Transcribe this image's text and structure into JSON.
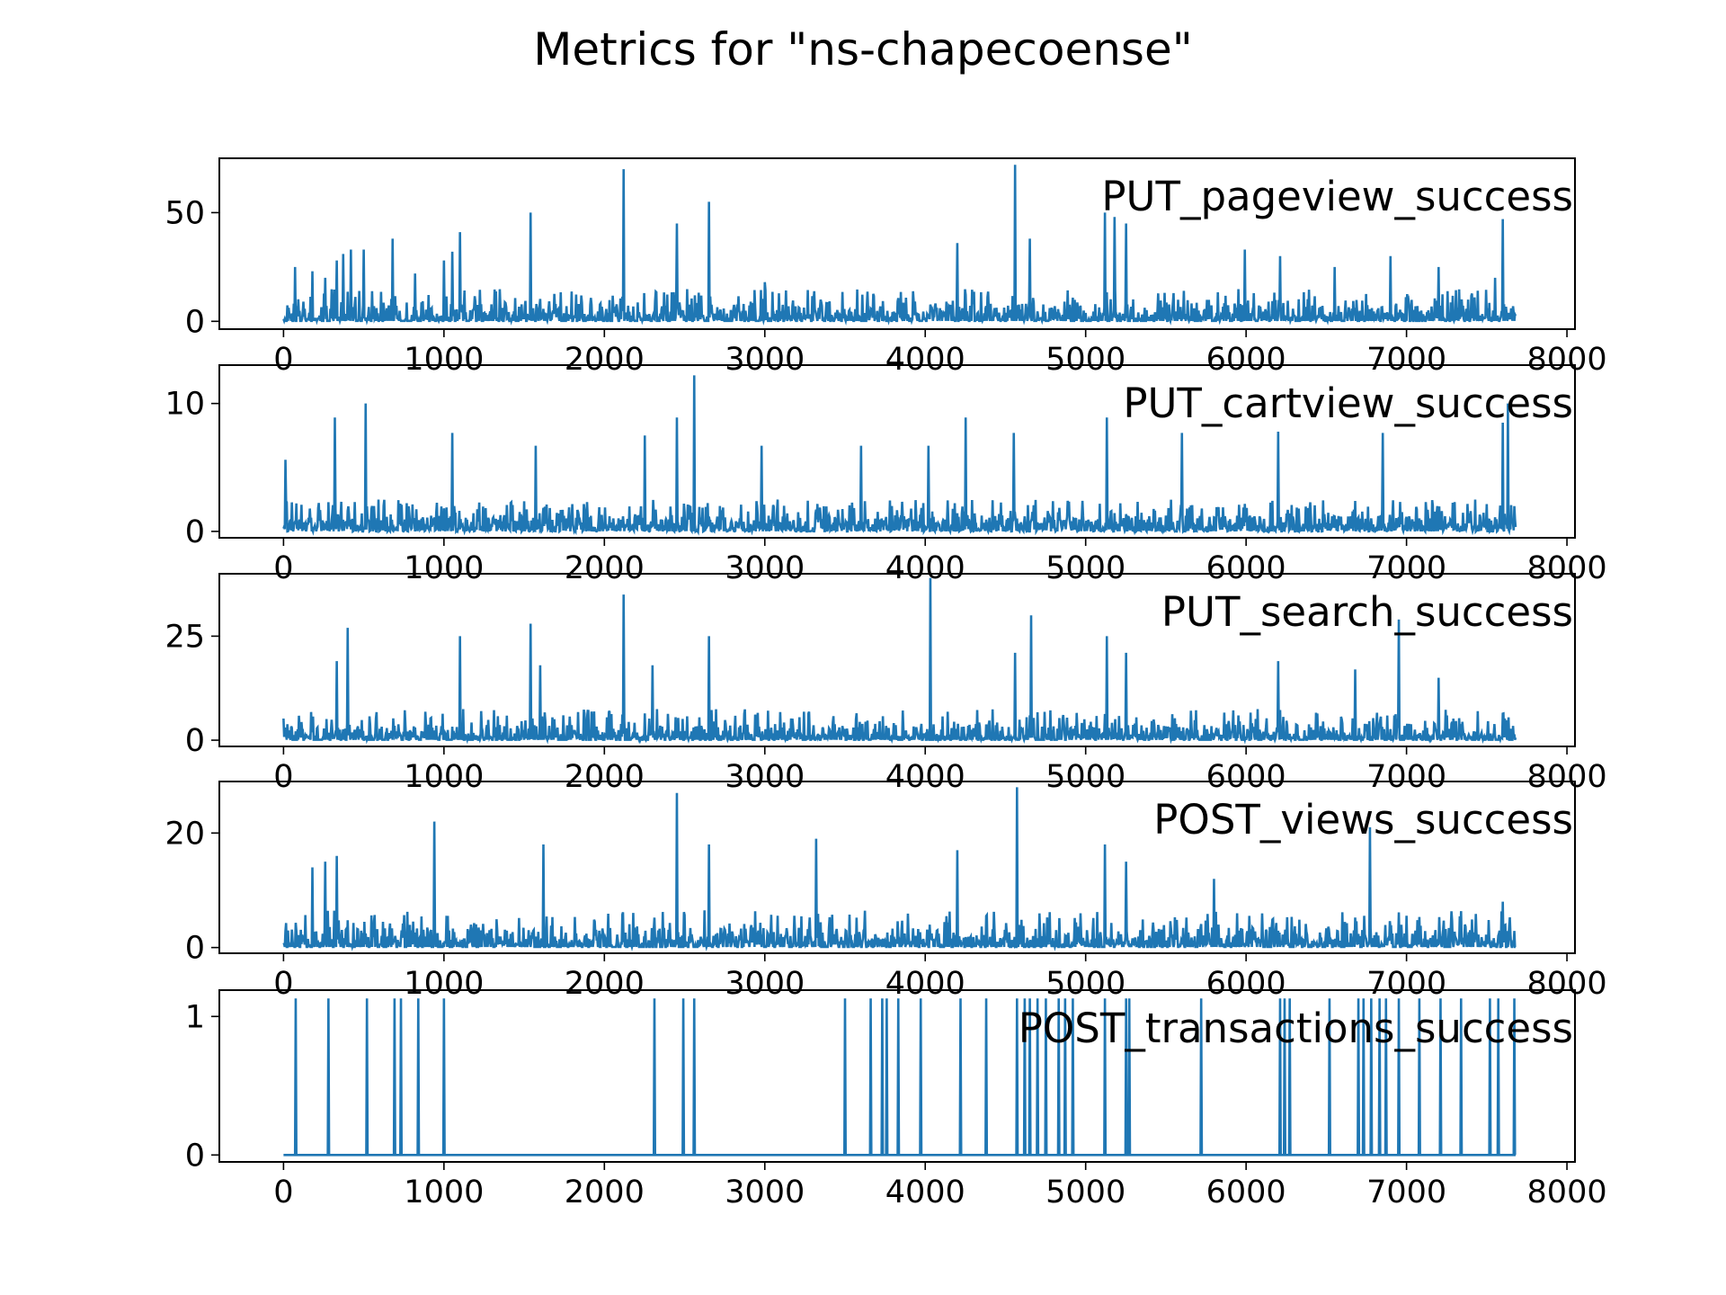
{
  "title": "Metrics for \"ns-chapecoense\"",
  "line_color": "#1f77b4",
  "chart_data": [
    {
      "type": "line",
      "series": [
        {
          "name": "PUT_pageview_success",
          "color": "#1f77b4"
        }
      ],
      "xlim": [
        -400,
        8050
      ],
      "ylim": [
        -3.6,
        75
      ],
      "xticks": [
        0,
        1000,
        2000,
        3000,
        4000,
        5000,
        6000,
        7000,
        8000
      ],
      "xtick_labels": [
        "0",
        "1000",
        "2000",
        "3000",
        "4000",
        "5000",
        "6000",
        "7000",
        "8000"
      ],
      "yticks": [
        0,
        50
      ],
      "ytick_labels": [
        "0",
        "50"
      ],
      "x_range": [
        0,
        7680
      ],
      "baseline": 1,
      "noise_max": 14,
      "spikes": [
        [
          70,
          25
        ],
        [
          180,
          23
        ],
        [
          260,
          20
        ],
        [
          330,
          28
        ],
        [
          370,
          31
        ],
        [
          420,
          33
        ],
        [
          500,
          33
        ],
        [
          680,
          38
        ],
        [
          820,
          22
        ],
        [
          1000,
          28
        ],
        [
          1050,
          32
        ],
        [
          1100,
          41
        ],
        [
          1540,
          50
        ],
        [
          2120,
          70
        ],
        [
          2450,
          45
        ],
        [
          2650,
          55
        ],
        [
          3000,
          18
        ],
        [
          4200,
          36
        ],
        [
          4560,
          72
        ],
        [
          4650,
          38
        ],
        [
          5120,
          50
        ],
        [
          5180,
          48
        ],
        [
          5250,
          45
        ],
        [
          5990,
          33
        ],
        [
          6210,
          30
        ],
        [
          6550,
          25
        ],
        [
          6900,
          30
        ],
        [
          7200,
          25
        ],
        [
          7550,
          20
        ],
        [
          7600,
          47
        ]
      ]
    },
    {
      "type": "line",
      "series": [
        {
          "name": "PUT_cartview_success",
          "color": "#1f77b4"
        }
      ],
      "xlim": [
        -400,
        8050
      ],
      "ylim": [
        -0.5,
        13
      ],
      "xticks": [
        0,
        1000,
        2000,
        3000,
        4000,
        5000,
        6000,
        7000,
        8000
      ],
      "xtick_labels": [
        "0",
        "1000",
        "2000",
        "3000",
        "4000",
        "5000",
        "6000",
        "7000",
        "8000"
      ],
      "yticks": [
        0,
        10
      ],
      "ytick_labels": [
        "0",
        "10"
      ],
      "x_range": [
        0,
        7680
      ],
      "baseline": 0,
      "noise_max": 2.5,
      "spikes": [
        [
          10,
          5.6
        ],
        [
          320,
          8.9
        ],
        [
          510,
          10
        ],
        [
          1050,
          7.7
        ],
        [
          1570,
          6.7
        ],
        [
          2250,
          7.5
        ],
        [
          2450,
          8.9
        ],
        [
          2560,
          12.2
        ],
        [
          2980,
          6.7
        ],
        [
          3600,
          6.7
        ],
        [
          4020,
          6.7
        ],
        [
          4250,
          8.9
        ],
        [
          4550,
          7.7
        ],
        [
          5130,
          8.9
        ],
        [
          5600,
          7.7
        ],
        [
          6200,
          7.8
        ],
        [
          6850,
          7.7
        ],
        [
          7600,
          8.5
        ],
        [
          7630,
          10
        ]
      ]
    },
    {
      "type": "line",
      "series": [
        {
          "name": "PUT_search_success",
          "color": "#1f77b4"
        }
      ],
      "xlim": [
        -400,
        8050
      ],
      "ylim": [
        -1.5,
        40
      ],
      "xticks": [
        0,
        1000,
        2000,
        3000,
        4000,
        5000,
        6000,
        7000,
        8000
      ],
      "xtick_labels": [
        "0",
        "1000",
        "2000",
        "3000",
        "4000",
        "5000",
        "6000",
        "7000",
        "8000"
      ],
      "yticks": [
        0,
        25
      ],
      "ytick_labels": [
        "0",
        "25"
      ],
      "x_range": [
        0,
        7680
      ],
      "baseline": 0.5,
      "noise_max": 7,
      "spikes": [
        [
          330,
          19
        ],
        [
          400,
          27
        ],
        [
          1100,
          25
        ],
        [
          1540,
          28
        ],
        [
          1600,
          18
        ],
        [
          2120,
          35
        ],
        [
          2300,
          18
        ],
        [
          2650,
          25
        ],
        [
          4030,
          39
        ],
        [
          4560,
          21
        ],
        [
          4660,
          30
        ],
        [
          5130,
          25
        ],
        [
          5250,
          21
        ],
        [
          6200,
          19
        ],
        [
          6680,
          17
        ],
        [
          6950,
          29
        ],
        [
          7200,
          15
        ]
      ]
    },
    {
      "type": "line",
      "series": [
        {
          "name": "POST_views_success",
          "color": "#1f77b4"
        }
      ],
      "xlim": [
        -400,
        8050
      ],
      "ylim": [
        -1,
        29
      ],
      "xticks": [
        0,
        1000,
        2000,
        3000,
        4000,
        5000,
        6000,
        7000,
        8000
      ],
      "xtick_labels": [
        "0",
        "1000",
        "2000",
        "3000",
        "4000",
        "5000",
        "6000",
        "7000",
        "8000"
      ],
      "yticks": [
        0,
        20
      ],
      "ytick_labels": [
        "0",
        "20"
      ],
      "x_range": [
        0,
        7680
      ],
      "baseline": 0.5,
      "noise_max": 6,
      "spikes": [
        [
          180,
          14
        ],
        [
          260,
          15
        ],
        [
          330,
          16
        ],
        [
          940,
          22
        ],
        [
          1620,
          18
        ],
        [
          2450,
          27
        ],
        [
          2650,
          18
        ],
        [
          3320,
          19
        ],
        [
          4200,
          17
        ],
        [
          4570,
          28
        ],
        [
          5120,
          18
        ],
        [
          5250,
          15
        ],
        [
          5800,
          12
        ],
        [
          6770,
          21
        ],
        [
          7600,
          8
        ]
      ]
    },
    {
      "type": "line",
      "series": [
        {
          "name": "POST_transactions_success",
          "color": "#1f77b4"
        }
      ],
      "xlim": [
        -400,
        8050
      ],
      "ylim": [
        -0.05,
        1.19
      ],
      "xticks": [
        0,
        1000,
        2000,
        3000,
        4000,
        5000,
        6000,
        7000,
        8000
      ],
      "xtick_labels": [
        "0",
        "1000",
        "2000",
        "3000",
        "4000",
        "5000",
        "6000",
        "7000",
        "8000"
      ],
      "yticks": [
        0,
        1
      ],
      "ytick_labels": [
        "0",
        "1"
      ],
      "x_range": [
        0,
        7680
      ],
      "baseline": 0,
      "noise_max": 0,
      "spikes": [
        [
          75,
          1.13
        ],
        [
          280,
          1.13
        ],
        [
          520,
          1.13
        ],
        [
          690,
          1.13
        ],
        [
          730,
          1.13
        ],
        [
          840,
          1.13
        ],
        [
          1000,
          1.13
        ],
        [
          2310,
          1.13
        ],
        [
          2490,
          1.13
        ],
        [
          2560,
          1.13
        ],
        [
          3500,
          1.13
        ],
        [
          3660,
          1.13
        ],
        [
          3730,
          1.13
        ],
        [
          3760,
          1.13
        ],
        [
          3830,
          1.13
        ],
        [
          3970,
          1.13
        ],
        [
          4220,
          1.13
        ],
        [
          4380,
          1.13
        ],
        [
          4570,
          1.13
        ],
        [
          4620,
          1.13
        ],
        [
          4650,
          1.13
        ],
        [
          4700,
          1.13
        ],
        [
          4750,
          1.13
        ],
        [
          4830,
          1.13
        ],
        [
          4870,
          1.13
        ],
        [
          4920,
          1.13
        ],
        [
          5120,
          1.13
        ],
        [
          5250,
          1.13
        ],
        [
          5270,
          1.13
        ],
        [
          5720,
          1.13
        ],
        [
          6210,
          1.13
        ],
        [
          6240,
          1.13
        ],
        [
          6270,
          1.13
        ],
        [
          6520,
          1.13
        ],
        [
          6700,
          1.13
        ],
        [
          6730,
          1.13
        ],
        [
          6780,
          1.13
        ],
        [
          6830,
          1.13
        ],
        [
          6870,
          1.13
        ],
        [
          6950,
          1.13
        ],
        [
          7080,
          1.13
        ],
        [
          7210,
          1.13
        ],
        [
          7340,
          1.13
        ],
        [
          7520,
          1.13
        ],
        [
          7570,
          1.13
        ],
        [
          7670,
          1.13
        ]
      ]
    }
  ]
}
